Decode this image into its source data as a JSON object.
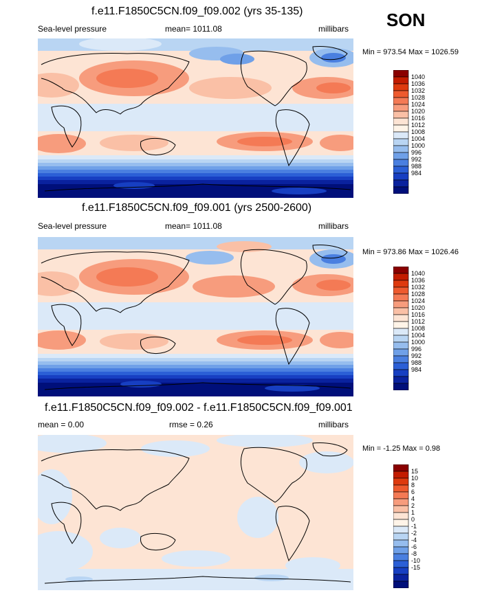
{
  "season": "SON",
  "legend_colors": [
    "#8a0000",
    "#c31c00",
    "#de3a0e",
    "#ee5a2e",
    "#f47a55",
    "#f79c7d",
    "#fac0a6",
    "#fde4d4",
    "#fff4e8",
    "#dbe9f8",
    "#b9d5f3",
    "#96bdee",
    "#6fa0e8",
    "#4a7fe0",
    "#2b5fd6",
    "#173fc2",
    "#0a229e",
    "#000f7a"
  ],
  "panels": [
    {
      "title": "f.e11.F1850C5CN.f09_f09.002 (yrs 35-135)",
      "left_label": "Sea-level pressure",
      "center_label": "mean= 1011.08",
      "right_label": "millibars",
      "minmax": "Min = 973.54 Max = 1026.59",
      "levels": [
        "1040",
        "1036",
        "1032",
        "1028",
        "1024",
        "1020",
        "1016",
        "1012",
        "1008",
        "1004",
        "1000",
        "996",
        "992",
        "988",
        "984"
      ]
    },
    {
      "title": "f.e11.F1850C5CN.f09_f09.001 (yrs 2500-2600)",
      "left_label": "Sea-level pressure",
      "center_label": "mean= 1011.08",
      "right_label": "millibars",
      "minmax": "Min = 973.86 Max = 1026.46",
      "levels": [
        "1040",
        "1036",
        "1032",
        "1028",
        "1024",
        "1020",
        "1016",
        "1012",
        "1008",
        "1004",
        "1000",
        "996",
        "992",
        "988",
        "984"
      ]
    },
    {
      "title": "f.e11.F1850C5CN.f09_f09.002 - f.e11.F1850C5CN.f09_f09.001",
      "left_label": "mean =   0.00",
      "center_label": "rmse =   0.26",
      "right_label": "millibars",
      "minmax": "Min =  -1.25 Max =   0.98",
      "levels": [
        "15",
        "10",
        "8",
        "6",
        "4",
        "2",
        "1",
        "0",
        "-1",
        "-2",
        "-4",
        "-6",
        "-8",
        "-10",
        "-15"
      ]
    }
  ]
}
